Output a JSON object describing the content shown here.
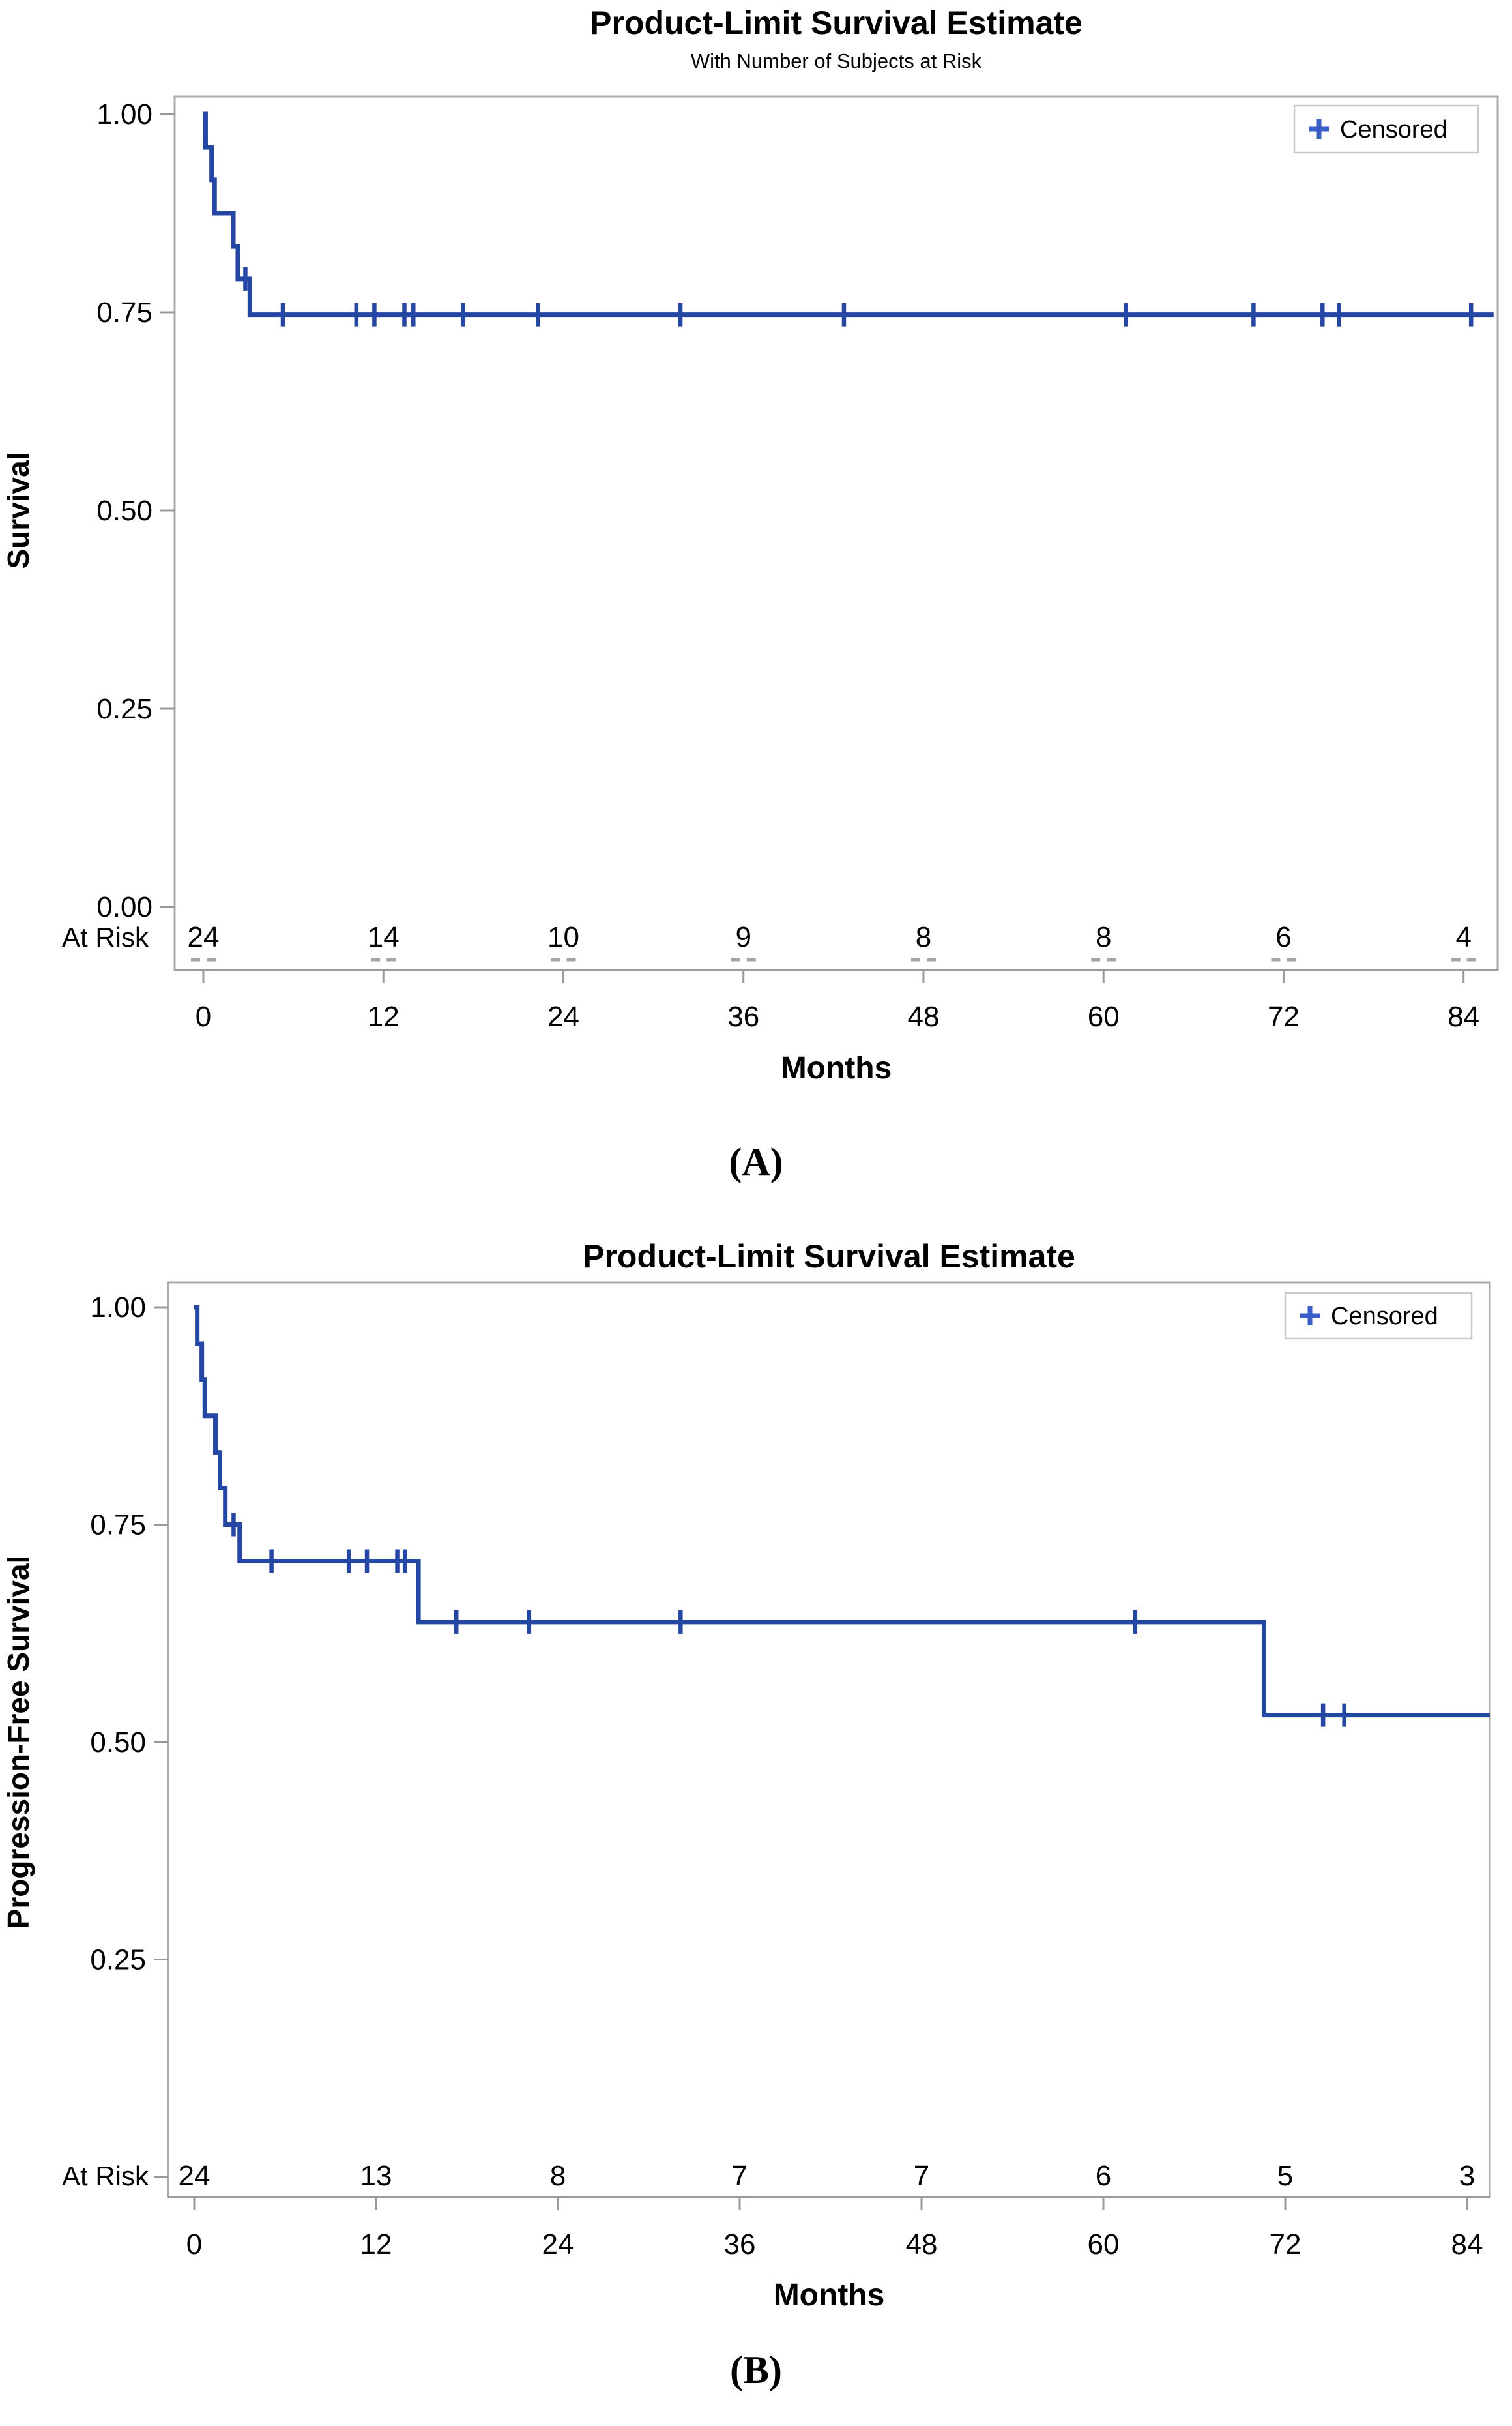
{
  "style": {
    "background": "#ffffff",
    "curve_color": "#2547a4",
    "censor_color": "#2547a4",
    "legend_marker_color": "#3a5fc8",
    "legend_border_color": "#c9c9c9",
    "axis_color": "#ababab",
    "tick_color": "#9a9a9a",
    "text_color": "#000000",
    "at_risk_sub_mark_color": "#a5a5a5"
  },
  "chart_data": [
    {
      "type": "line",
      "subtype": "kaplan-meier-step",
      "panel": "A",
      "caption": "(A)",
      "title": "Product-Limit Survival Estimate",
      "subtitle": "With Number of Subjects at Risk",
      "xlabel": "Months",
      "ylabel": "Survival",
      "legend": {
        "marker": "+",
        "label": "Censored",
        "position": "top-right"
      },
      "grid": false,
      "xlim": [
        0,
        86
      ],
      "ylim": [
        0,
        1
      ],
      "xticks": [
        0,
        12,
        24,
        36,
        48,
        60,
        72,
        84
      ],
      "yticks": [
        {
          "v": 1.0,
          "label": "1.00"
        },
        {
          "v": 0.75,
          "label": "0.75"
        },
        {
          "v": 0.5,
          "label": "0.50"
        },
        {
          "v": 0.25,
          "label": "0.25"
        },
        {
          "v": 0.0,
          "label": "0.00"
        }
      ],
      "steps": [
        [
          0,
          1.0
        ],
        [
          0.15,
          0.958
        ],
        [
          0.55,
          0.917
        ],
        [
          0.75,
          0.875
        ],
        [
          2.0,
          0.833
        ],
        [
          2.3,
          0.792
        ],
        [
          3.1,
          0.747
        ]
      ],
      "curve_end": 86,
      "censor_marks": [
        [
          2.8,
          0.792
        ],
        [
          5.3,
          0.747
        ],
        [
          10.2,
          0.747
        ],
        [
          11.4,
          0.747
        ],
        [
          13.4,
          0.747
        ],
        [
          14.0,
          0.747
        ],
        [
          17.3,
          0.747
        ],
        [
          22.3,
          0.747
        ],
        [
          31.8,
          0.747
        ],
        [
          42.7,
          0.747
        ],
        [
          61.5,
          0.747
        ],
        [
          70.0,
          0.747
        ],
        [
          74.6,
          0.747
        ],
        [
          75.7,
          0.747
        ],
        [
          84.5,
          0.747
        ]
      ],
      "at_risk_label": "At Risk",
      "at_risk_times": [
        0,
        12,
        24,
        36,
        48,
        60,
        72,
        84
      ],
      "at_risk_counts": [
        24,
        14,
        10,
        9,
        8,
        8,
        6,
        4
      ],
      "at_risk_sub_marks": true
    },
    {
      "type": "line",
      "subtype": "kaplan-meier-step",
      "panel": "B",
      "caption": "(B)",
      "title": "Product-Limit Survival Estimate",
      "subtitle": "",
      "xlabel": "Months",
      "ylabel": "Progression-Free Survival",
      "legend": {
        "marker": "+",
        "label": "Censored",
        "position": "top-right"
      },
      "grid": false,
      "xlim": [
        0,
        86
      ],
      "ylim": [
        0,
        1
      ],
      "xticks": [
        0,
        12,
        24,
        36,
        48,
        60,
        72,
        84
      ],
      "yticks": [
        {
          "v": 1.0,
          "label": "1.00"
        },
        {
          "v": 0.75,
          "label": "0.75"
        },
        {
          "v": 0.5,
          "label": "0.50"
        },
        {
          "v": 0.25,
          "label": "0.25"
        },
        {
          "v": 0.0,
          "label": ""
        }
      ],
      "steps": [
        [
          0,
          1.0
        ],
        [
          0.2,
          0.958
        ],
        [
          0.5,
          0.917
        ],
        [
          0.7,
          0.875
        ],
        [
          1.4,
          0.833
        ],
        [
          1.7,
          0.792
        ],
        [
          2.05,
          0.75
        ],
        [
          3.0,
          0.708
        ],
        [
          14.8,
          0.638
        ],
        [
          70.6,
          0.531
        ]
      ],
      "curve_end": 85.5,
      "censor_marks": [
        [
          2.6,
          0.75
        ],
        [
          5.1,
          0.708
        ],
        [
          10.2,
          0.708
        ],
        [
          11.4,
          0.708
        ],
        [
          13.4,
          0.708
        ],
        [
          13.9,
          0.708
        ],
        [
          17.3,
          0.638
        ],
        [
          22.1,
          0.638
        ],
        [
          32.1,
          0.638
        ],
        [
          62.1,
          0.638
        ],
        [
          74.5,
          0.531
        ],
        [
          75.9,
          0.531
        ]
      ],
      "at_risk_label": "At Risk",
      "at_risk_times": [
        0,
        12,
        24,
        36,
        48,
        60,
        72,
        84
      ],
      "at_risk_counts": [
        24,
        13,
        8,
        7,
        7,
        6,
        5,
        3
      ],
      "at_risk_sub_marks": false
    }
  ]
}
